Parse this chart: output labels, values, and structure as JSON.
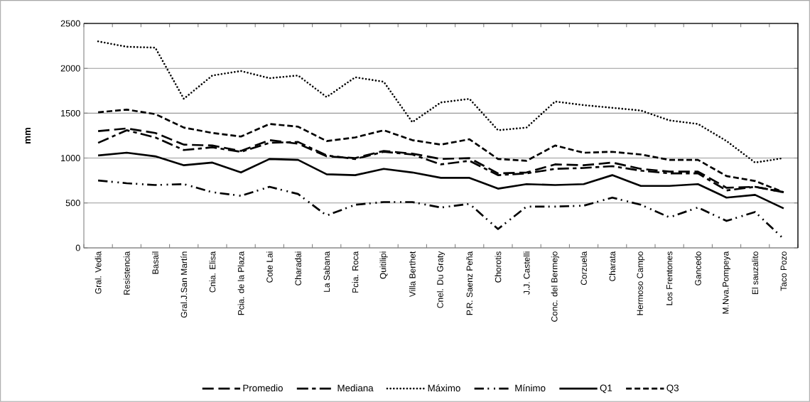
{
  "chart_data": {
    "type": "line",
    "ylabel": "mm",
    "categories": [
      "Gral. Vedia",
      "Resistencia",
      "Basail",
      "Gral.J.San Martín",
      "Cnia. Elisa",
      "Pcia. de la Plaza",
      "Cote Lai",
      "Charadai",
      "La Sabana",
      "Pcia. Roca",
      "Quitilipi",
      "Villa Berthet",
      "Cnel. Du Graty",
      "P.R. Saenz Peña",
      "Chorotis",
      "J.J. Castelli",
      "Conc. del Bermejo",
      "Corzuela",
      "Charata",
      "Hermoso Campo",
      "Los Frentones",
      "Gancedo",
      "M.Nva.Pompeya",
      "El sauzalito",
      "Taco Pozo"
    ],
    "series": [
      {
        "name": "Promedio",
        "color": "#000000",
        "line_style": "dashed",
        "values": [
          1300,
          1330,
          1280,
          1150,
          1140,
          1080,
          1200,
          1160,
          1020,
          1000,
          1080,
          1050,
          990,
          1000,
          830,
          840,
          930,
          920,
          950,
          880,
          850,
          850,
          670,
          680,
          620
        ]
      },
      {
        "name": "Mediana",
        "color": "#000000",
        "line_style": "dashed",
        "values": [
          1170,
          1310,
          1230,
          1090,
          1120,
          1070,
          1170,
          1180,
          1030,
          990,
          1070,
          1040,
          930,
          970,
          810,
          830,
          880,
          890,
          910,
          860,
          830,
          830,
          640,
          680,
          620
        ]
      },
      {
        "name": "Máximo",
        "color": "#000000",
        "line_style": "dotted",
        "values": [
          2300,
          2240,
          2230,
          1660,
          1920,
          1970,
          1890,
          1920,
          1680,
          1900,
          1850,
          1400,
          1620,
          1660,
          1310,
          1340,
          1630,
          1590,
          1560,
          1530,
          1420,
          1380,
          1190,
          950,
          1000
        ]
      },
      {
        "name": "Mínimo",
        "color": "#000000",
        "line_style": "dashed",
        "values": [
          750,
          720,
          700,
          710,
          620,
          580,
          680,
          600,
          360,
          480,
          510,
          510,
          450,
          490,
          210,
          460,
          460,
          470,
          560,
          480,
          340,
          450,
          300,
          400,
          100
        ]
      },
      {
        "name": "Q1",
        "color": "#000000",
        "line_style": "solid",
        "values": [
          1030,
          1060,
          1020,
          920,
          950,
          840,
          990,
          980,
          820,
          810,
          880,
          840,
          780,
          780,
          660,
          710,
          700,
          710,
          810,
          690,
          690,
          710,
          560,
          590,
          440
        ]
      },
      {
        "name": "Q3",
        "color": "#000000",
        "line_style": "dashed",
        "values": [
          1510,
          1540,
          1490,
          1340,
          1280,
          1240,
          1380,
          1350,
          1190,
          1230,
          1310,
          1200,
          1150,
          1210,
          990,
          970,
          1140,
          1060,
          1070,
          1040,
          980,
          980,
          800,
          745,
          620
        ]
      }
    ],
    "ylim": [
      0,
      2500
    ],
    "yticks": [
      0,
      500,
      1000,
      1500,
      2000,
      2500
    ],
    "grid": "y",
    "legend": "bottom",
    "marker": "none"
  }
}
